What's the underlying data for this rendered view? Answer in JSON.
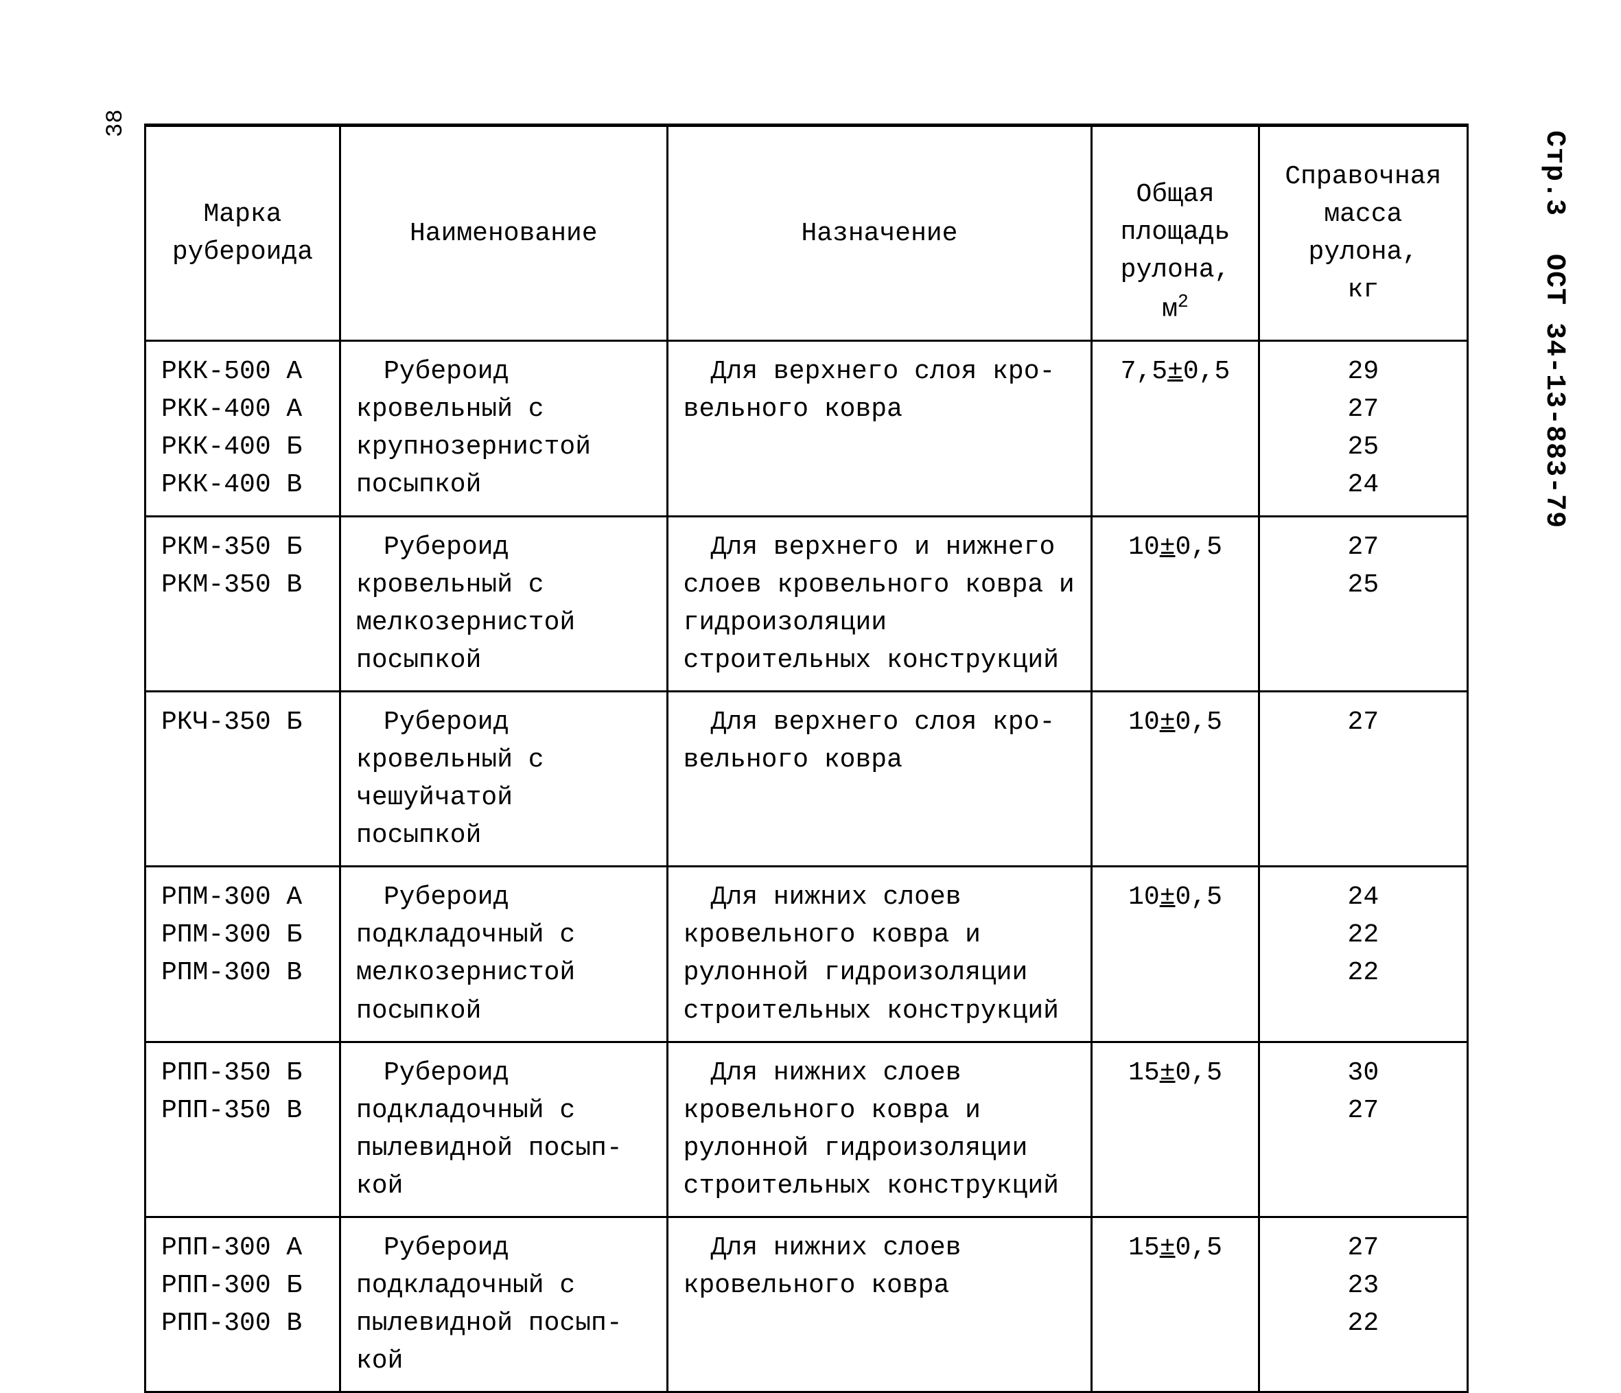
{
  "page_number_left": "38",
  "side": {
    "page": "Стр.3",
    "standard": "ОСТ 34-13-883-79"
  },
  "table": {
    "headers": {
      "marka": "Марка\nрубероида",
      "naimen": "Наименование",
      "nazn": "Назначение",
      "area_pre": "Общая\nплощадь\nрулона, м",
      "area_sup": "2",
      "massa": "Справочная\nмасса рулона,\nкг"
    },
    "rows": [
      {
        "marka": "РКК-500 А\nРКК-400 А\nРКК-400 Б\nРКК-400 В",
        "naimen": "Рубероид кровельный с крупнозернистой по­сыпкой",
        "nazn": "Для верхнего слоя кро­вельного ковра",
        "area_main": "7,5",
        "area_tol": "0,5",
        "massa": "29\n27\n25\n24"
      },
      {
        "marka": "РКМ-350 Б\nРКМ-350 В",
        "naimen": "Рубероид кровельный с мелкозернистой посып­кой",
        "nazn": "Для верхнего и нижнего слоев кровельного ковра и гидроизоляции строительных конструкций",
        "area_main": "10",
        "area_tol": "0,5",
        "massa": "27\n25"
      },
      {
        "marka": "РКЧ-350 Б",
        "naimen": "Рубероид кровельный с чешуйчатой посыпкой",
        "nazn": "Для верхнего слоя кро­вельного ковра",
        "area_main": "10",
        "area_tol": "0,5",
        "massa": "27"
      },
      {
        "marka": "РПМ-300 А\nРПМ-300 Б\nРПМ-300 В",
        "naimen": "Рубероид подкладоч­ный с мелкозернистой посыпкой",
        "nazn": "Для нижних слоев кровель­ного ковра и рулонной гидро­изоляции строительных конст­рукций",
        "area_main": "10",
        "area_tol": "0,5",
        "massa": "24\n22\n22"
      },
      {
        "marka": "РПП-350 Б\nРПП-350 В",
        "naimen": "Рубероид подкладоч­ный с пылевидной посып­кой",
        "nazn": "Для нижних слоев кровель­ного ковра и рулонной гидро­изоляции строительных конст­рукций",
        "area_main": "15",
        "area_tol": "0,5",
        "massa": "30\n27"
      },
      {
        "marka": "РПП-300 А\nРПП-300 Б\nРПП-300 В",
        "naimen": "Рубероид подкладоч­ный с пылевидной посып­кой",
        "nazn": "Для нижних слоев кровель­ного ковра",
        "area_main": "15",
        "area_tol": "0,5",
        "massa": "27\n23\n22"
      }
    ]
  }
}
